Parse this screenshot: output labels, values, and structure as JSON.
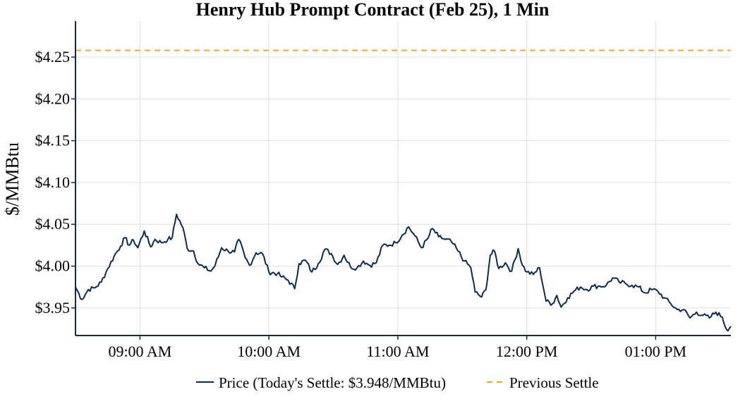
{
  "chart_data": {
    "type": "line",
    "title": "Henry Hub Prompt Contract (Feb 25), 1 Min",
    "ylabel": "$/MMBtu",
    "xlabel": "",
    "x_range_minutes": [
      510,
      815
    ],
    "ylim": [
      3.917,
      4.293
    ],
    "y_ticks": [
      3.95,
      4.0,
      4.05,
      4.1,
      4.15,
      4.2,
      4.25
    ],
    "y_tick_labels": [
      "$3.95",
      "$4.00",
      "$4.05",
      "$4.10",
      "$4.15",
      "$4.20",
      "$4.25"
    ],
    "x_ticks": [
      540,
      600,
      660,
      720,
      780
    ],
    "x_tick_labels": [
      "09:00 AM",
      "10:00 AM",
      "11:00 AM",
      "12:00 PM",
      "01:00 PM"
    ],
    "grid": true,
    "legend_position": "bottom-center",
    "previous_settle": 4.258,
    "series": [
      {
        "name": "Price (Today's Settle: $3.948/MMBtu)",
        "color": "#0b2a57",
        "keypoints": [
          [
            510,
            3.975
          ],
          [
            513,
            3.96
          ],
          [
            516,
            3.972
          ],
          [
            519,
            3.974
          ],
          [
            522,
            3.981
          ],
          [
            525,
            3.997
          ],
          [
            528,
            4.012
          ],
          [
            531,
            4.024
          ],
          [
            533,
            4.034
          ],
          [
            535,
            4.025
          ],
          [
            537,
            4.031
          ],
          [
            539,
            4.022
          ],
          [
            542,
            4.042
          ],
          [
            545,
            4.023
          ],
          [
            547,
            4.032
          ],
          [
            550,
            4.028
          ],
          [
            553,
            4.032
          ],
          [
            555,
            4.034
          ],
          [
            557,
            4.062
          ],
          [
            560,
            4.046
          ],
          [
            562,
            4.021
          ],
          [
            565,
            4.018
          ],
          [
            567,
            4.003
          ],
          [
            570,
            3.998
          ],
          [
            573,
            3.994
          ],
          [
            575,
            4.001
          ],
          [
            578,
            4.022
          ],
          [
            581,
            4.018
          ],
          [
            584,
            4.017
          ],
          [
            586,
            4.032
          ],
          [
            589,
            4.01
          ],
          [
            591,
            4.001
          ],
          [
            594,
            4.016
          ],
          [
            597,
            4.015
          ],
          [
            600,
            3.993
          ],
          [
            604,
            3.991
          ],
          [
            606,
            3.987
          ],
          [
            609,
            3.983
          ],
          [
            612,
            3.973
          ],
          [
            614,
            4.003
          ],
          [
            617,
            4.007
          ],
          [
            620,
            3.993
          ],
          [
            623,
            4.003
          ],
          [
            626,
            4.02
          ],
          [
            629,
            4.015
          ],
          [
            632,
            4.002
          ],
          [
            635,
            4.013
          ],
          [
            638,
            3.999
          ],
          [
            641,
            3.998
          ],
          [
            644,
            4.006
          ],
          [
            647,
            4.001
          ],
          [
            650,
            4.004
          ],
          [
            653,
            4.025
          ],
          [
            656,
            4.025
          ],
          [
            659,
            4.028
          ],
          [
            662,
            4.037
          ],
          [
            665,
            4.047
          ],
          [
            668,
            4.036
          ],
          [
            671,
            4.022
          ],
          [
            674,
            4.033
          ],
          [
            676,
            4.045
          ],
          [
            679,
            4.035
          ],
          [
            682,
            4.032
          ],
          [
            685,
            4.029
          ],
          [
            688,
            4.018
          ],
          [
            691,
            4.006
          ],
          [
            694,
            3.998
          ],
          [
            696,
            3.969
          ],
          [
            699,
            3.963
          ],
          [
            701,
            3.972
          ],
          [
            703,
            4.013
          ],
          [
            705,
            4.018
          ],
          [
            707,
            3.997
          ],
          [
            710,
            4.004
          ],
          [
            713,
            3.994
          ],
          [
            716,
            4.021
          ],
          [
            718,
            4.001
          ],
          [
            720,
            3.993
          ],
          [
            723,
            3.99
          ],
          [
            726,
            3.998
          ],
          [
            729,
            3.958
          ],
          [
            732,
            3.955
          ],
          [
            734,
            3.965
          ],
          [
            736,
            3.951
          ],
          [
            739,
            3.962
          ],
          [
            742,
            3.97
          ],
          [
            745,
            3.975
          ],
          [
            748,
            3.972
          ],
          [
            751,
            3.976
          ],
          [
            754,
            3.976
          ],
          [
            757,
            3.977
          ],
          [
            760,
            3.986
          ],
          [
            763,
            3.981
          ],
          [
            766,
            3.979
          ],
          [
            769,
            3.977
          ],
          [
            772,
            3.975
          ],
          [
            775,
            3.968
          ],
          [
            778,
            3.972
          ],
          [
            781,
            3.97
          ],
          [
            784,
            3.962
          ],
          [
            787,
            3.955
          ],
          [
            790,
            3.948
          ],
          [
            793,
            3.948
          ],
          [
            796,
            3.938
          ],
          [
            799,
            3.945
          ],
          [
            802,
            3.941
          ],
          [
            805,
            3.938
          ],
          [
            808,
            3.945
          ],
          [
            811,
            3.939
          ],
          [
            813,
            3.924
          ],
          [
            815,
            3.928
          ]
        ]
      },
      {
        "name": "Previous Settle",
        "color": "#f5a623"
      }
    ]
  }
}
